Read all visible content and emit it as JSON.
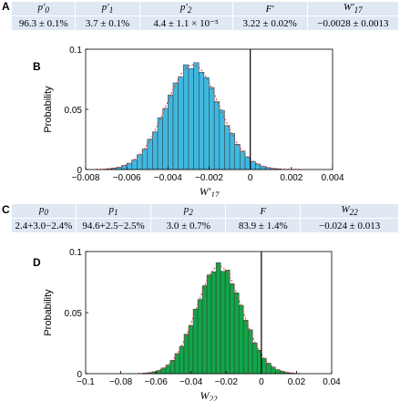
{
  "panel_labels": [
    "A",
    "B",
    "C",
    "D"
  ],
  "table_a": {
    "headers": [
      "p′0",
      "p′1",
      "p′2",
      "F′",
      "W′17"
    ],
    "values": [
      "96.3 ± 0.1%",
      "3.7 ± 0.1%",
      "4.4 ± 1.1 × 10⁻⁵",
      "3.22 ± 0.02%",
      "−0.0028 ± 0.0013"
    ]
  },
  "table_c": {
    "headers": [
      "p0",
      "p1",
      "p2",
      "F",
      "W22"
    ],
    "values": [
      "2.4+3.0−2.4%",
      "94.6+2.5−2.5%",
      "3.0 ± 0.7%",
      "83.9 ± 1.4%",
      "−0.024 ± 0.013"
    ]
  },
  "chart_data": [
    {
      "type": "bar",
      "panel": "B",
      "xlabel": "W′17",
      "ylabel": "Probability",
      "xlim": [
        -0.008,
        0.004
      ],
      "ylim": [
        0,
        0.1
      ],
      "x_ticks": [
        "−0.008",
        "−0.006",
        "−0.004",
        "−0.002",
        "0",
        "0.002",
        "0.004"
      ],
      "y_ticks": [
        "0",
        "0.05",
        "0.1"
      ],
      "bar_color": "#3fb8e0",
      "fit_color": "#e03030",
      "vline_x": 0,
      "distribution": {
        "mean": -0.0028,
        "sd": 0.0013,
        "peak": 0.087,
        "bin_width": 0.00025,
        "range": [
          -0.0075,
          0.0025
        ]
      }
    },
    {
      "type": "bar",
      "panel": "D",
      "xlabel": "W22",
      "ylabel": "Probability",
      "xlim": [
        -0.1,
        0.04
      ],
      "ylim": [
        0,
        0.1
      ],
      "x_ticks": [
        "−0.1",
        "−0.08",
        "−0.06",
        "−0.04",
        "−0.02",
        "0",
        "0.02",
        "0.04"
      ],
      "y_ticks": [
        "0",
        "0.05",
        "0.1"
      ],
      "bar_color": "#12a64a",
      "fit_color": "#e03030",
      "vline_x": 0,
      "distribution": {
        "mean": -0.024,
        "sd": 0.013,
        "peak": 0.088,
        "bin_width": 0.0026,
        "range": [
          -0.07,
          0.023
        ]
      }
    }
  ]
}
